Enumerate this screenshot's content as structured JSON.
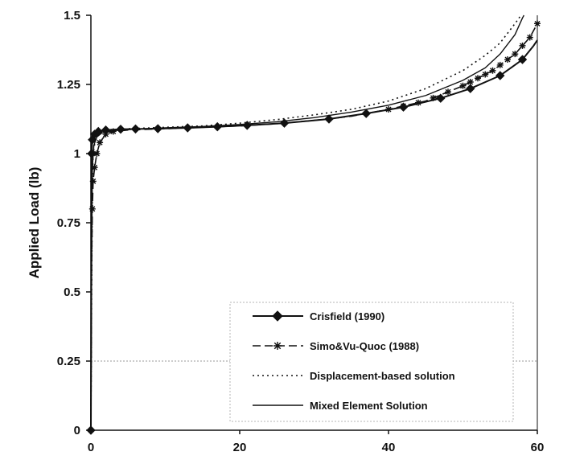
{
  "chart_data": {
    "type": "line",
    "title": "",
    "xlabel": "",
    "ylabel": "Applied Load (lb)",
    "xlim": [
      0,
      60
    ],
    "ylim": [
      0,
      1.5
    ],
    "x_ticks": [
      "0",
      "20",
      "40",
      "60"
    ],
    "y_ticks": [
      "0",
      "0.25",
      "0.5",
      "0.75",
      "1",
      "1.25",
      "1.5"
    ],
    "grid": "horizontal gridline at 0.25",
    "legend_position": "bottom-right",
    "series": [
      {
        "name": "Crisfield  (1990)",
        "style": "solid-diamond",
        "color": "#111111",
        "points": [
          [
            0,
            0
          ],
          [
            0.1,
            1.0
          ],
          [
            0.2,
            1.05
          ],
          [
            0.5,
            1.07
          ],
          [
            1,
            1.08
          ],
          [
            2,
            1.085
          ],
          [
            4,
            1.088
          ],
          [
            6,
            1.089
          ],
          [
            9,
            1.09
          ],
          [
            13,
            1.093
          ],
          [
            17,
            1.097
          ],
          [
            21,
            1.102
          ],
          [
            26,
            1.11
          ],
          [
            32,
            1.125
          ],
          [
            37,
            1.145
          ],
          [
            42,
            1.168
          ],
          [
            47,
            1.2
          ],
          [
            51,
            1.235
          ],
          [
            55,
            1.282
          ],
          [
            58,
            1.34
          ],
          [
            59.5,
            1.39
          ],
          [
            60,
            1.41
          ]
        ],
        "markers_x": [
          0,
          0.1,
          0.2,
          0.5,
          1,
          2,
          4,
          6,
          9,
          13,
          17,
          21,
          26,
          32,
          37,
          42,
          47,
          51,
          55,
          58
        ]
      },
      {
        "name": "Simo&Vu-Quoc (1988)",
        "style": "dashed-star",
        "color": "#111111",
        "points": [
          [
            0,
            0
          ],
          [
            0.05,
            0.3
          ],
          [
            0.1,
            0.6
          ],
          [
            0.2,
            0.8
          ],
          [
            0.3,
            0.9
          ],
          [
            0.5,
            0.95
          ],
          [
            0.8,
            1.0
          ],
          [
            1.2,
            1.04
          ],
          [
            2,
            1.07
          ],
          [
            3,
            1.08
          ],
          [
            5,
            1.085
          ],
          [
            10,
            1.09
          ],
          [
            15,
            1.095
          ],
          [
            20,
            1.1
          ],
          [
            25,
            1.108
          ],
          [
            30,
            1.12
          ],
          [
            35,
            1.135
          ],
          [
            40,
            1.16
          ],
          [
            45,
            1.19
          ],
          [
            50,
            1.245
          ],
          [
            54,
            1.3
          ],
          [
            57,
            1.36
          ],
          [
            59,
            1.42
          ],
          [
            60,
            1.47
          ]
        ],
        "markers_x": [
          0.2,
          0.3,
          0.5,
          0.8,
          1.2,
          2,
          3,
          40,
          42,
          44,
          46,
          48,
          50,
          51,
          52,
          53,
          54,
          55,
          56,
          57,
          58,
          59,
          60
        ]
      },
      {
        "name": "Displacement-based solution",
        "style": "dotted",
        "color": "#111111",
        "points": [
          [
            0,
            0
          ],
          [
            0.1,
            0.5
          ],
          [
            0.2,
            0.9
          ],
          [
            0.3,
            1.0
          ],
          [
            0.6,
            1.05
          ],
          [
            1,
            1.07
          ],
          [
            2,
            1.082
          ],
          [
            5,
            1.09
          ],
          [
            10,
            1.095
          ],
          [
            15,
            1.1
          ],
          [
            20,
            1.11
          ],
          [
            25,
            1.123
          ],
          [
            30,
            1.14
          ],
          [
            35,
            1.16
          ],
          [
            40,
            1.19
          ],
          [
            45,
            1.235
          ],
          [
            50,
            1.3
          ],
          [
            53,
            1.355
          ],
          [
            55,
            1.4
          ],
          [
            57,
            1.47
          ],
          [
            57.8,
            1.5
          ]
        ]
      },
      {
        "name": "Mixed Element Solution",
        "style": "solid",
        "color": "#111111",
        "points": [
          [
            0,
            0
          ],
          [
            0.1,
            0.6
          ],
          [
            0.2,
            0.95
          ],
          [
            0.4,
            1.03
          ],
          [
            0.8,
            1.06
          ],
          [
            1.5,
            1.075
          ],
          [
            3,
            1.083
          ],
          [
            6,
            1.088
          ],
          [
            10,
            1.093
          ],
          [
            15,
            1.098
          ],
          [
            20,
            1.105
          ],
          [
            25,
            1.115
          ],
          [
            30,
            1.13
          ],
          [
            35,
            1.15
          ],
          [
            40,
            1.175
          ],
          [
            45,
            1.21
          ],
          [
            50,
            1.265
          ],
          [
            53,
            1.31
          ],
          [
            55,
            1.36
          ],
          [
            57,
            1.43
          ],
          [
            58,
            1.49
          ],
          [
            58.2,
            1.5
          ]
        ]
      }
    ]
  }
}
